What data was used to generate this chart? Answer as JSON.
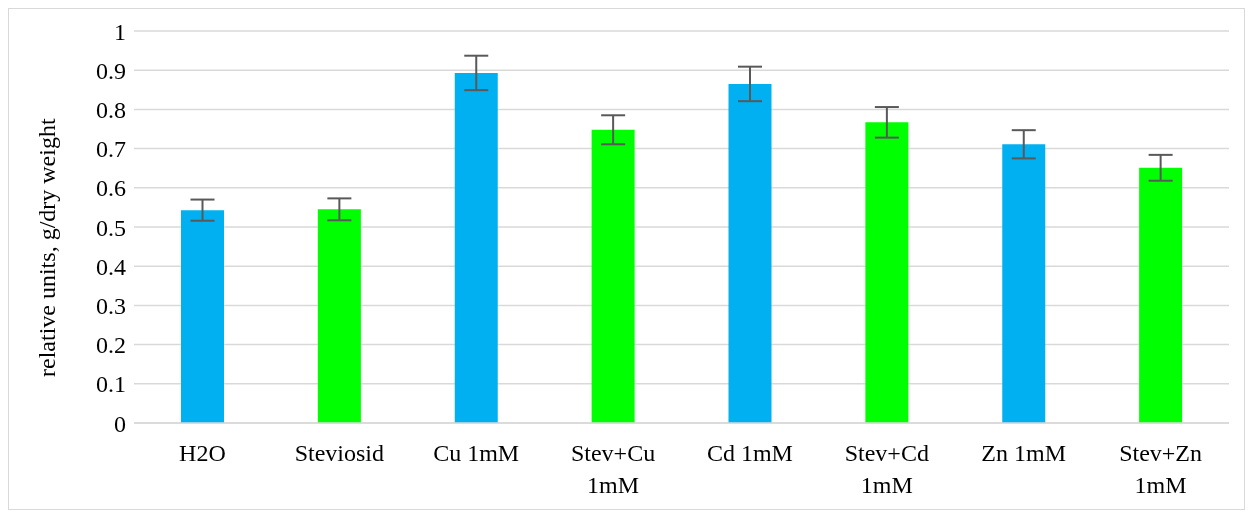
{
  "chart_data": {
    "type": "bar",
    "ylabel": "relative units, g/dry weight",
    "categories": [
      "H2O",
      "Steviosid",
      "Cu 1mM",
      "Stev+Cu 1mM",
      "Cd 1mM",
      "Stev+Cd 1mM",
      "Zn 1mM",
      "Stev+Zn 1mM"
    ],
    "values": [
      0.543,
      0.545,
      0.893,
      0.748,
      0.865,
      0.767,
      0.711,
      0.651
    ],
    "errors": [
      0.027,
      0.028,
      0.044,
      0.037,
      0.044,
      0.039,
      0.036,
      0.033
    ],
    "colors": [
      "#00b0f0",
      "#00ff00",
      "#00b0f0",
      "#00ff00",
      "#00b0f0",
      "#00ff00",
      "#00b0f0",
      "#00ff00"
    ],
    "ylim": [
      0,
      1
    ],
    "yticks": [
      0,
      0.1,
      0.2,
      0.3,
      0.4,
      0.5,
      0.6,
      0.7,
      0.8,
      0.9,
      1
    ],
    "grid": "y",
    "legend": false
  }
}
